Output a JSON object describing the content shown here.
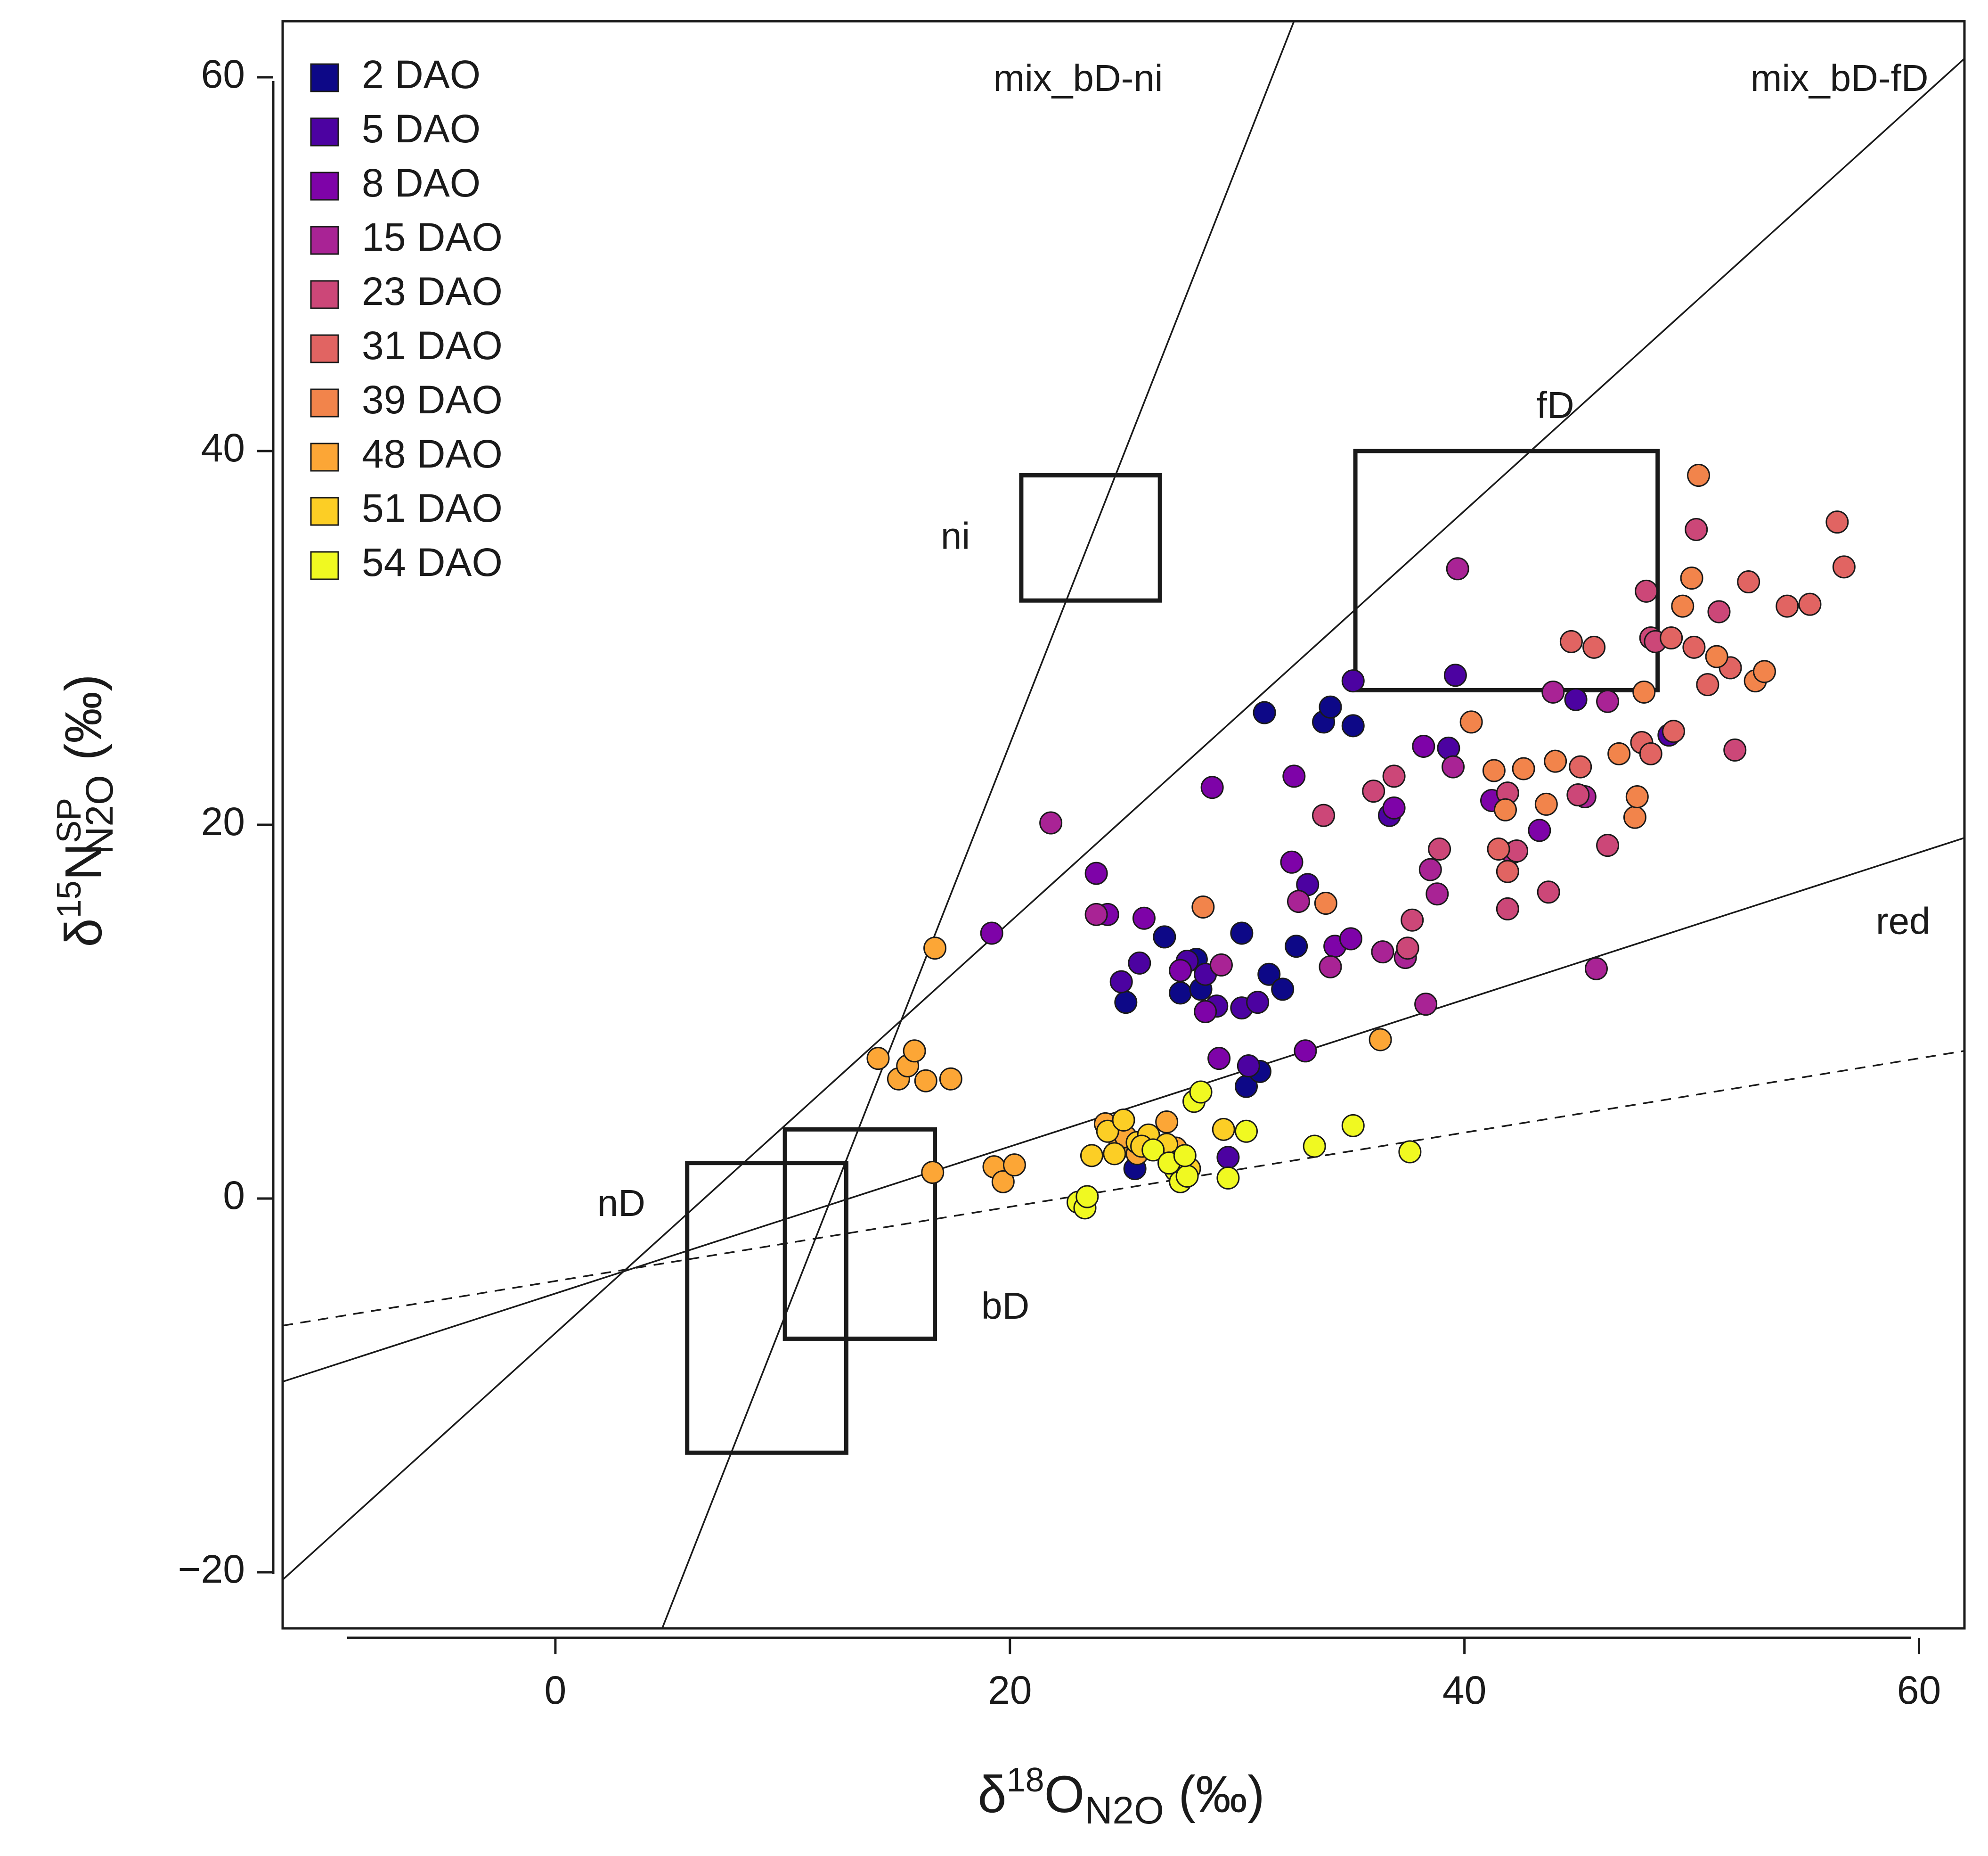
{
  "chart_data": {
    "type": "scatter",
    "title": "",
    "xlabel": {
      "prefix": "δ",
      "sup": "18",
      "main": "O",
      "sub": "N2O",
      "suffix": " (‰)"
    },
    "ylabel": {
      "prefix": "δ",
      "sup": "15",
      "main": "N",
      "supr": "SP",
      "sub": "N2O",
      "suffix": " (‰)"
    },
    "xlim": [
      -12,
      62
    ],
    "ylim": [
      -23,
      63
    ],
    "x_ticks": [
      0,
      20,
      40,
      60
    ],
    "y_ticks": [
      -20,
      0,
      20,
      40,
      60
    ],
    "x_tick_labels": [
      "0",
      "20",
      "40",
      "60"
    ],
    "y_tick_labels": [
      "−20",
      "0",
      "20",
      "40",
      "60"
    ],
    "legend_position": "top-left",
    "series": [
      {
        "name": "2 DAO",
        "color": "#0d0887",
        "points": [
          [
            31.2,
            26.0
          ],
          [
            33.8,
            25.5
          ],
          [
            34.1,
            26.3
          ],
          [
            35.1,
            25.3
          ],
          [
            25.1,
            10.5
          ],
          [
            25.5,
            1.6
          ],
          [
            26.8,
            14.0
          ],
          [
            27.5,
            11.0
          ],
          [
            28.2,
            12.8
          ],
          [
            28.4,
            11.2
          ],
          [
            30.2,
            14.2
          ],
          [
            30.4,
            6.0
          ],
          [
            31.0,
            6.8
          ],
          [
            31.4,
            12.0
          ],
          [
            32.0,
            11.2
          ],
          [
            32.6,
            13.5
          ]
        ]
      },
      {
        "name": "5 DAO",
        "color": "#4c02a1",
        "points": [
          [
            24.9,
            11.6
          ],
          [
            25.7,
            12.6
          ],
          [
            27.8,
            12.7
          ],
          [
            28.6,
            12.0
          ],
          [
            29.1,
            10.3
          ],
          [
            30.2,
            10.2
          ],
          [
            30.5,
            7.1
          ],
          [
            30.9,
            10.5
          ],
          [
            33.1,
            16.8
          ],
          [
            36.7,
            20.5
          ],
          [
            39.3,
            24.1
          ],
          [
            39.6,
            28.0
          ],
          [
            44.9,
            26.7
          ],
          [
            49.0,
            24.8
          ],
          [
            35.1,
            27.7
          ],
          [
            29.6,
            2.2
          ]
        ]
      },
      {
        "name": "8 DAO",
        "color": "#7e03a8",
        "points": [
          [
            19.2,
            14.2
          ],
          [
            23.8,
            17.4
          ],
          [
            24.3,
            15.2
          ],
          [
            25.9,
            15.0
          ],
          [
            27.5,
            12.2
          ],
          [
            28.6,
            10.0
          ],
          [
            28.9,
            22.0
          ],
          [
            29.2,
            7.5
          ],
          [
            32.5,
            22.6
          ],
          [
            32.4,
            18.0
          ],
          [
            33.0,
            7.9
          ],
          [
            34.3,
            13.5
          ],
          [
            35.0,
            13.9
          ],
          [
            36.9,
            20.9
          ],
          [
            38.2,
            24.2
          ],
          [
            41.2,
            21.3
          ],
          [
            43.3,
            19.7
          ]
        ]
      },
      {
        "name": "15 DAO",
        "color": "#a92395",
        "points": [
          [
            21.8,
            20.1
          ],
          [
            23.8,
            15.2
          ],
          [
            29.3,
            12.5
          ],
          [
            32.7,
            15.9
          ],
          [
            34.1,
            12.4
          ],
          [
            36.4,
            13.2
          ],
          [
            37.4,
            12.9
          ],
          [
            38.3,
            10.4
          ],
          [
            38.5,
            17.6
          ],
          [
            38.8,
            16.3
          ],
          [
            39.5,
            23.1
          ],
          [
            39.7,
            33.7
          ],
          [
            42.1,
            18.5
          ],
          [
            43.9,
            27.1
          ],
          [
            45.3,
            21.5
          ],
          [
            45.8,
            12.3
          ],
          [
            46.3,
            26.6
          ]
        ]
      },
      {
        "name": "23 DAO",
        "color": "#cc4778",
        "points": [
          [
            33.8,
            20.5
          ],
          [
            36.0,
            21.8
          ],
          [
            36.9,
            22.6
          ],
          [
            37.5,
            13.4
          ],
          [
            37.7,
            14.9
          ],
          [
            38.9,
            18.7
          ],
          [
            41.9,
            15.5
          ],
          [
            41.9,
            21.7
          ],
          [
            42.3,
            18.6
          ],
          [
            43.7,
            16.4
          ],
          [
            45.0,
            21.6
          ],
          [
            46.3,
            18.9
          ],
          [
            48.0,
            32.5
          ],
          [
            48.2,
            30.0
          ],
          [
            48.4,
            29.8
          ],
          [
            50.2,
            35.8
          ],
          [
            51.2,
            31.4
          ],
          [
            51.9,
            24.0
          ]
        ]
      },
      {
        "name": "31 DAO",
        "color": "#e16462",
        "points": [
          [
            41.5,
            18.7
          ],
          [
            41.9,
            17.5
          ],
          [
            45.1,
            23.1
          ],
          [
            44.7,
            29.8
          ],
          [
            45.7,
            29.5
          ],
          [
            47.8,
            24.4
          ],
          [
            49.1,
            30.0
          ],
          [
            49.2,
            25.0
          ],
          [
            50.7,
            27.5
          ],
          [
            51.7,
            28.4
          ],
          [
            52.5,
            33.0
          ],
          [
            54.2,
            31.7
          ],
          [
            55.2,
            31.8
          ],
          [
            56.4,
            36.2
          ],
          [
            56.7,
            33.8
          ],
          [
            48.2,
            23.8
          ],
          [
            50.1,
            29.5
          ]
        ]
      },
      {
        "name": "39 DAO",
        "color": "#f2844b",
        "points": [
          [
            28.5,
            15.6
          ],
          [
            33.9,
            15.8
          ],
          [
            40.3,
            25.5
          ],
          [
            41.3,
            22.9
          ],
          [
            41.8,
            20.8
          ],
          [
            42.6,
            23.0
          ],
          [
            43.6,
            21.1
          ],
          [
            44.0,
            23.4
          ],
          [
            47.5,
            20.4
          ],
          [
            47.6,
            21.5
          ],
          [
            46.8,
            23.8
          ],
          [
            47.9,
            27.1
          ],
          [
            49.6,
            31.7
          ],
          [
            50.0,
            33.2
          ],
          [
            50.3,
            38.7
          ],
          [
            51.1,
            29.0
          ],
          [
            52.8,
            27.7
          ],
          [
            53.2,
            28.2
          ]
        ]
      },
      {
        "name": "48 DAO",
        "color": "#fca636",
        "points": [
          [
            14.2,
            7.5
          ],
          [
            15.1,
            6.4
          ],
          [
            15.5,
            7.1
          ],
          [
            15.8,
            7.9
          ],
          [
            16.3,
            6.3
          ],
          [
            16.7,
            13.4
          ],
          [
            17.4,
            6.4
          ],
          [
            16.6,
            1.4
          ],
          [
            19.3,
            1.7
          ],
          [
            19.7,
            0.9
          ],
          [
            20.2,
            1.8
          ],
          [
            24.2,
            4.0
          ],
          [
            24.8,
            2.7
          ],
          [
            25.1,
            3.3
          ],
          [
            25.6,
            2.4
          ],
          [
            26.2,
            2.9
          ],
          [
            26.9,
            4.1
          ],
          [
            27.3,
            2.7
          ],
          [
            36.3,
            8.5
          ]
        ]
      },
      {
        "name": "51 DAO",
        "color": "#fcce25",
        "points": [
          [
            23.6,
            2.3
          ],
          [
            24.3,
            3.6
          ],
          [
            25.0,
            4.2
          ],
          [
            25.6,
            3.0
          ],
          [
            26.1,
            3.4
          ],
          [
            26.9,
            2.9
          ],
          [
            27.4,
            2.0
          ],
          [
            27.9,
            1.6
          ],
          [
            29.4,
            3.7
          ],
          [
            24.6,
            2.4
          ],
          [
            25.8,
            2.8
          ]
        ]
      },
      {
        "name": "54 DAO",
        "color": "#f0f921",
        "points": [
          [
            23.0,
            -0.2
          ],
          [
            23.3,
            -0.5
          ],
          [
            23.4,
            0.1
          ],
          [
            26.3,
            2.6
          ],
          [
            27.3,
            1.5
          ],
          [
            27.5,
            0.9
          ],
          [
            27.8,
            1.2
          ],
          [
            28.1,
            5.2
          ],
          [
            28.4,
            5.7
          ],
          [
            29.6,
            1.1
          ],
          [
            30.4,
            3.6
          ],
          [
            33.4,
            2.8
          ],
          [
            35.1,
            3.9
          ],
          [
            37.6,
            2.5
          ],
          [
            27.0,
            1.9
          ],
          [
            27.7,
            2.3
          ]
        ]
      }
    ],
    "boxes": [
      {
        "name": "nD",
        "x_range": [
          5.8,
          12.8
        ],
        "y_range": [
          -13.6,
          1.9
        ]
      },
      {
        "name": "bD",
        "x_range": [
          10.1,
          16.7
        ],
        "y_range": [
          -7.5,
          3.7
        ]
      },
      {
        "name": "ni",
        "x_range": [
          20.5,
          26.6
        ],
        "y_range": [
          32.0,
          38.7
        ]
      },
      {
        "name": "fD",
        "x_range": [
          35.2,
          48.5
        ],
        "y_range": [
          27.2,
          40.0
        ]
      }
    ],
    "lines": [
      {
        "name": "mix_bD-ni",
        "style": "solid",
        "from": [
          4.7,
          -23
        ],
        "to": [
          32.5,
          63
        ]
      },
      {
        "name": "mix_bD-fD",
        "style": "solid",
        "from": [
          -12,
          -20.4
        ],
        "to": [
          62,
          61.0
        ]
      },
      {
        "name": "red",
        "style": "solid",
        "from": [
          -12,
          -9.8
        ],
        "to": [
          62,
          19.3
        ]
      },
      {
        "name": "red-dashed",
        "style": "dashed",
        "from": [
          -12,
          -6.8
        ],
        "to": [
          62,
          7.9
        ]
      }
    ],
    "annotations": [
      {
        "text": "mix_bD-ni",
        "x": 23.0,
        "y": 59.8
      },
      {
        "text": "mix_bD-fD",
        "x": 56.5,
        "y": 59.8
      },
      {
        "text": "fD",
        "x": 44.0,
        "y": 42.3
      },
      {
        "text": "ni",
        "x": 17.6,
        "y": 35.3
      },
      {
        "text": "red",
        "x": 59.3,
        "y": 14.7
      },
      {
        "text": "nD",
        "x": 2.9,
        "y": -0.4
      },
      {
        "text": "bD",
        "x": 19.8,
        "y": -5.9
      }
    ]
  }
}
